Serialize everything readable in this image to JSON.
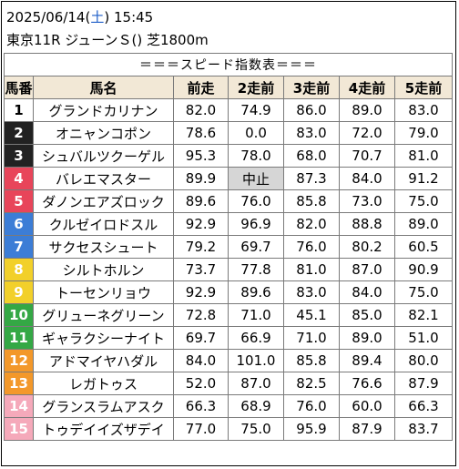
{
  "header": {
    "date": "2025/06/14",
    "dow_open": "(",
    "dow": "土",
    "dow_close": ")",
    "time": "15:45",
    "race": "東京11R ジューンＳ() 芝1800m"
  },
  "table": {
    "title": "＝＝＝スピード指数表＝＝＝",
    "columns": [
      "馬番",
      "馬名",
      "前走",
      "2走前",
      "3走前",
      "4走前",
      "5走前"
    ],
    "rows": [
      {
        "no": "1",
        "name": "グランドカリナン",
        "v": [
          "82.0",
          "74.9",
          "86.0",
          "89.0",
          "83.0"
        ],
        "bg": "#ffffff",
        "fg": "#000000",
        "bar": true
      },
      {
        "no": "2",
        "name": "オニャンコポン",
        "v": [
          "78.6",
          "0.0",
          "83.0",
          "72.0",
          "79.0"
        ],
        "bg": "#222222",
        "fg": "#ffffff",
        "bar": false
      },
      {
        "no": "3",
        "name": "シュバルツクーゲル",
        "v": [
          "95.3",
          "78.0",
          "68.0",
          "70.7",
          "81.0"
        ],
        "bg": "#222222",
        "fg": "#ffffff",
        "bar": false
      },
      {
        "no": "4",
        "name": "バレエマスター",
        "v": [
          "89.9",
          "中止",
          "87.3",
          "84.0",
          "91.2"
        ],
        "bg": "#e8455a",
        "fg": "#ffffff",
        "bar": false
      },
      {
        "no": "5",
        "name": "ダノンエアズロック",
        "v": [
          "89.6",
          "76.0",
          "85.8",
          "73.0",
          "75.0"
        ],
        "bg": "#e8455a",
        "fg": "#ffffff",
        "bar": true
      },
      {
        "no": "6",
        "name": "クルゼイロドスル",
        "v": [
          "92.9",
          "96.9",
          "82.0",
          "88.8",
          "89.0"
        ],
        "bg": "#3c7dd6",
        "fg": "#ffffff",
        "bar": true
      },
      {
        "no": "7",
        "name": "サクセスシュート",
        "v": [
          "79.2",
          "69.7",
          "76.0",
          "80.2",
          "60.5"
        ],
        "bg": "#3c7dd6",
        "fg": "#ffffff",
        "bar": true
      },
      {
        "no": "8",
        "name": "シルトホルン",
        "v": [
          "73.7",
          "77.8",
          "81.0",
          "87.0",
          "90.9"
        ],
        "bg": "#f2d02a",
        "fg": "#ffffff",
        "bar": false
      },
      {
        "no": "9",
        "name": "トーセンリョウ",
        "v": [
          "92.9",
          "89.6",
          "83.0",
          "84.0",
          "75.0"
        ],
        "bg": "#f2d02a",
        "fg": "#ffffff",
        "bar": false
      },
      {
        "no": "10",
        "name": "グリューネグリーン",
        "v": [
          "72.8",
          "71.0",
          "45.1",
          "85.0",
          "82.1"
        ],
        "bg": "#34a845",
        "fg": "#ffffff",
        "bar": false
      },
      {
        "no": "11",
        "name": "ギャラクシーナイト",
        "v": [
          "69.7",
          "66.9",
          "71.0",
          "89.0",
          "51.0"
        ],
        "bg": "#34a845",
        "fg": "#ffffff",
        "bar": false
      },
      {
        "no": "12",
        "name": "アドマイヤハダル",
        "v": [
          "84.0",
          "101.0",
          "85.8",
          "89.4",
          "80.0"
        ],
        "bg": "#f3982a",
        "fg": "#ffffff",
        "bar": false
      },
      {
        "no": "13",
        "name": "レガトゥス",
        "v": [
          "52.0",
          "87.0",
          "82.5",
          "76.6",
          "87.9"
        ],
        "bg": "#f3982a",
        "fg": "#ffffff",
        "bar": true
      },
      {
        "no": "14",
        "name": "グランスラムアスク",
        "v": [
          "66.3",
          "68.9",
          "76.0",
          "60.0",
          "66.3"
        ],
        "bg": "#f5a9ba",
        "fg": "#ffffff",
        "bar": false
      },
      {
        "no": "15",
        "name": "トゥデイイズザデイ",
        "v": [
          "77.0",
          "75.0",
          "95.9",
          "87.9",
          "83.7"
        ],
        "bg": "#f5a9ba",
        "fg": "#ffffff",
        "bar": true
      }
    ]
  }
}
